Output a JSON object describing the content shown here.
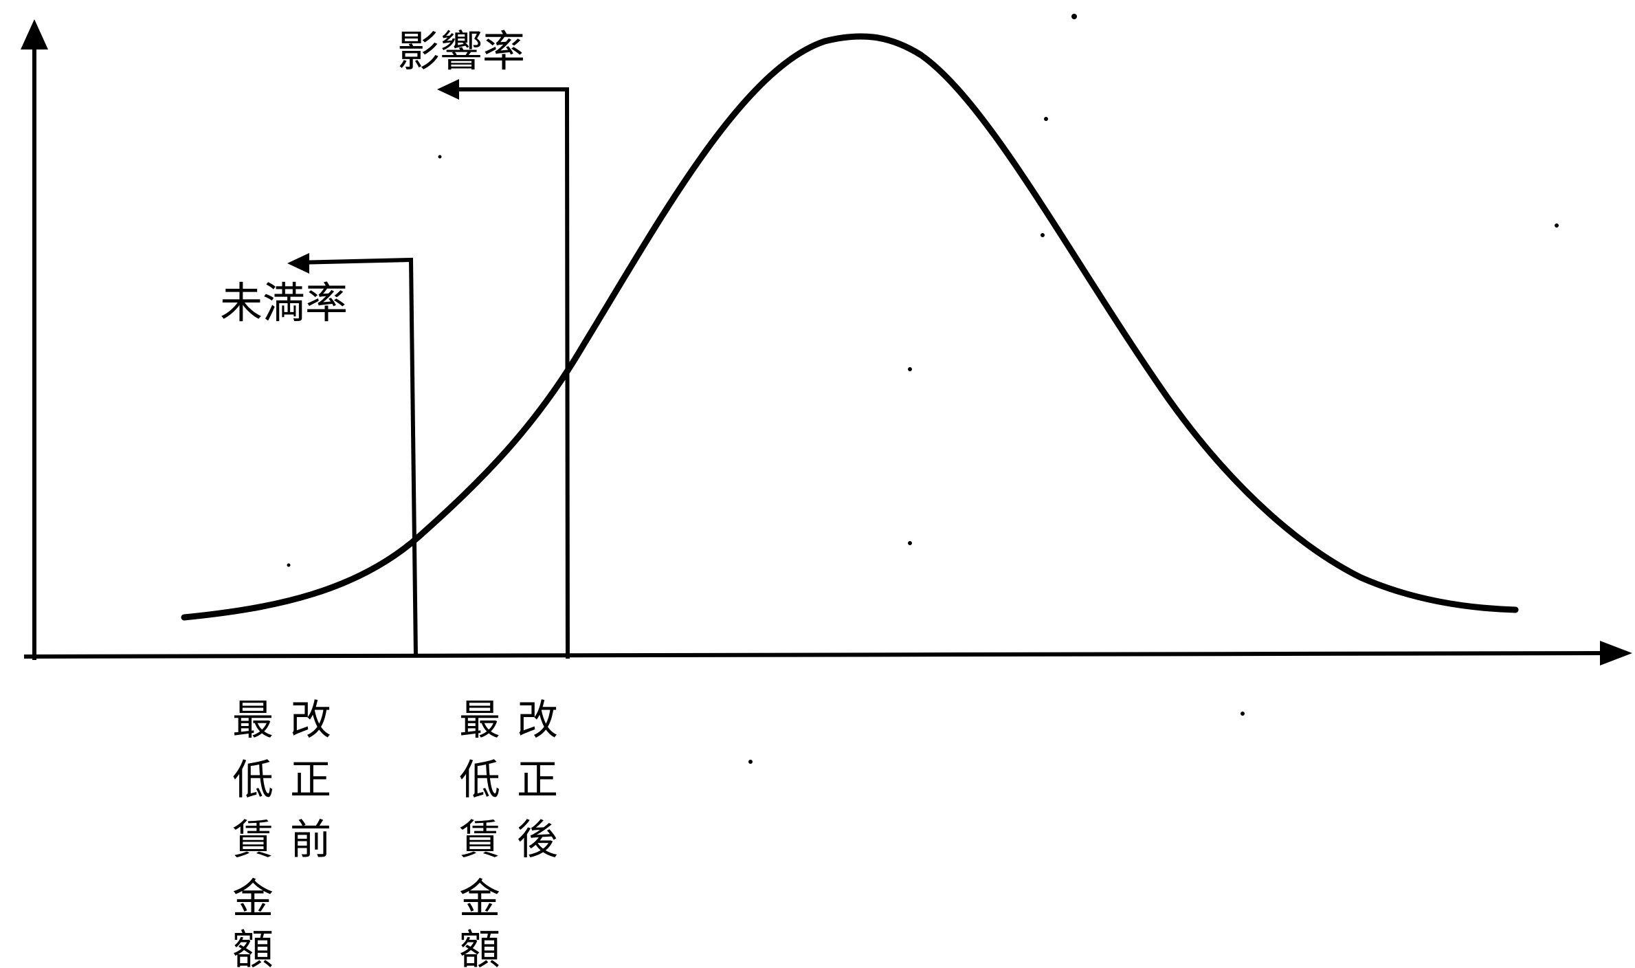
{
  "diagram": {
    "rate_labels": {
      "unmet_rate": "未満率",
      "impact_rate": "影響率"
    },
    "wage_labels": {
      "before": {
        "right_column": [
          "改",
          "正",
          "前"
        ],
        "left_column": [
          "最",
          "低",
          "賃",
          "金",
          "額"
        ]
      },
      "after": {
        "right_column": [
          "改",
          "正",
          "後"
        ],
        "left_column": [
          "最",
          "低",
          "賃",
          "金",
          "額"
        ]
      }
    },
    "colors": {
      "ink": "#000000",
      "background": "#ffffff"
    }
  }
}
